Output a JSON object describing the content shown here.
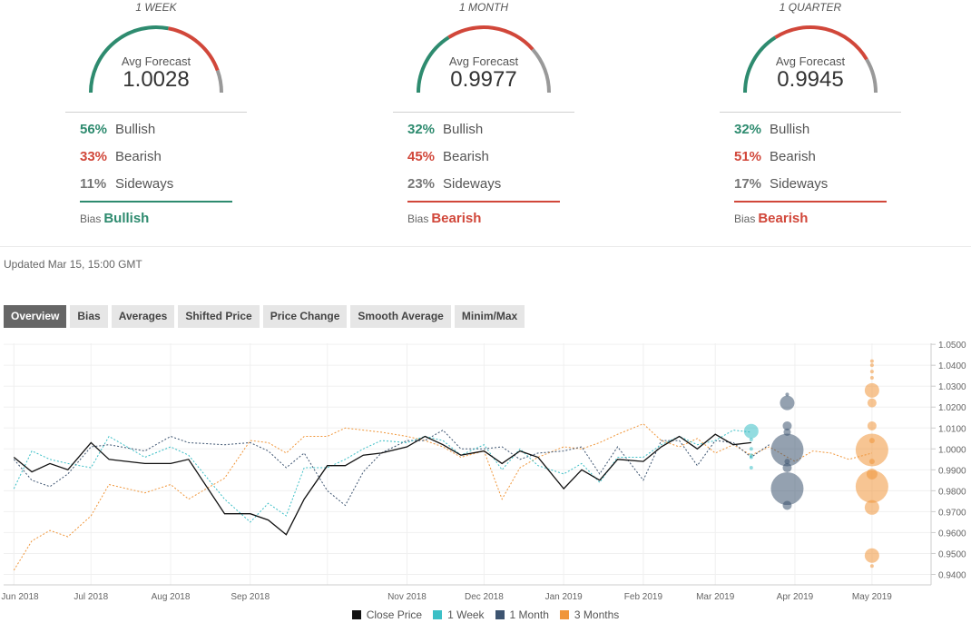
{
  "panels": [
    {
      "title": "1 WEEK",
      "avg_label": "Avg Forecast",
      "avg_value": "1.0028",
      "bullish_pct": "56%",
      "bullish_label": "Bullish",
      "bearish_pct": "33%",
      "bearish_label": "Bearish",
      "sideways_pct": "11%",
      "sideways_label": "Sideways",
      "bias_label": "Bias",
      "bias_value": "Bullish",
      "bias_color": "#2e8b6f",
      "gauge": {
        "bullish": 0.56,
        "bearish": 0.33,
        "sideways": 0.11
      }
    },
    {
      "title": "1 MONTH",
      "avg_label": "Avg Forecast",
      "avg_value": "0.9977",
      "bullish_pct": "32%",
      "bullish_label": "Bullish",
      "bearish_pct": "45%",
      "bearish_label": "Bearish",
      "sideways_pct": "23%",
      "sideways_label": "Sideways",
      "bias_label": "Bias",
      "bias_value": "Bearish",
      "bias_color": "#d1473a",
      "gauge": {
        "bullish": 0.32,
        "bearish": 0.45,
        "sideways": 0.23
      }
    },
    {
      "title": "1 QUARTER",
      "avg_label": "Avg Forecast",
      "avg_value": "0.9945",
      "bullish_pct": "32%",
      "bullish_label": "Bullish",
      "bearish_pct": "51%",
      "bearish_label": "Bearish",
      "sideways_pct": "17%",
      "sideways_label": "Sideways",
      "bias_label": "Bias",
      "bias_value": "Bearish",
      "bias_color": "#d1473a",
      "gauge": {
        "bullish": 0.32,
        "bearish": 0.51,
        "sideways": 0.17
      }
    }
  ],
  "colors": {
    "bullish": "#2e8b6f",
    "bearish": "#d1473a",
    "sideways": "#999999",
    "close": "#111111",
    "week": "#3bbfc6",
    "month": "#3d5470",
    "months3": "#f0963a"
  },
  "updated": "Updated Mar 15, 15:00 GMT",
  "tabs": [
    "Overview",
    "Bias",
    "Averages",
    "Shifted Price",
    "Price Change",
    "Smooth Average",
    "Minim/Max"
  ],
  "active_tab": "Overview",
  "chart_data": {
    "type": "line",
    "x_ticks": [
      "Jun 2018",
      "Jul 2018",
      "Aug 2018",
      "Sep 2018",
      "Nov 2018",
      "Dec 2018",
      "Jan 2019",
      "Feb 2019",
      "Mar 2019",
      "Apr 2019",
      "May 2019"
    ],
    "y_ticks": [
      "1.0500",
      "1.0400",
      "1.0300",
      "1.0200",
      "1.0100",
      "1.0000",
      "0.9900",
      "0.9800",
      "0.9700",
      "0.9600",
      "0.9500",
      "0.9400"
    ],
    "ylim": [
      0.935,
      1.0505
    ],
    "legend_position": "bottom",
    "series": [
      {
        "name": "Close Price",
        "style": "solid",
        "values": [
          [
            "2018-06-01",
            0.996
          ],
          [
            "2018-06-08",
            0.989
          ],
          [
            "2018-06-15",
            0.993
          ],
          [
            "2018-06-22",
            0.99
          ],
          [
            "2018-07-01",
            1.003
          ],
          [
            "2018-07-08",
            0.995
          ],
          [
            "2018-07-22",
            0.993
          ],
          [
            "2018-08-01",
            0.993
          ],
          [
            "2018-08-08",
            0.995
          ],
          [
            "2018-08-22",
            0.969
          ],
          [
            "2018-09-01",
            0.969
          ],
          [
            "2018-09-08",
            0.966
          ],
          [
            "2018-09-15",
            0.959
          ],
          [
            "2018-09-22",
            0.976
          ],
          [
            "2018-10-01",
            0.992
          ],
          [
            "2018-10-08",
            0.992
          ],
          [
            "2018-10-15",
            0.997
          ],
          [
            "2018-10-22",
            0.998
          ],
          [
            "2018-11-01",
            1.001
          ],
          [
            "2018-11-08",
            1.006
          ],
          [
            "2018-11-15",
            1.002
          ],
          [
            "2018-11-22",
            0.997
          ],
          [
            "2018-12-01",
            0.999
          ],
          [
            "2018-12-08",
            0.993
          ],
          [
            "2018-12-15",
            0.999
          ],
          [
            "2018-12-22",
            0.996
          ],
          [
            "2019-01-01",
            0.981
          ],
          [
            "2019-01-08",
            0.99
          ],
          [
            "2019-01-15",
            0.985
          ],
          [
            "2019-01-22",
            0.995
          ],
          [
            "2019-02-01",
            0.994
          ],
          [
            "2019-02-08",
            1.001
          ],
          [
            "2019-02-15",
            1.006
          ],
          [
            "2019-02-22",
            1.0
          ],
          [
            "2019-03-01",
            1.007
          ],
          [
            "2019-03-08",
            1.002
          ],
          [
            "2019-03-15",
            1.003
          ]
        ]
      },
      {
        "name": "1 Week",
        "style": "dashed",
        "values": [
          [
            "2018-06-01",
            0.981
          ],
          [
            "2018-06-08",
            0.999
          ],
          [
            "2018-06-15",
            0.995
          ],
          [
            "2018-06-22",
            0.993
          ],
          [
            "2018-07-01",
            0.991
          ],
          [
            "2018-07-08",
            1.006
          ],
          [
            "2018-07-22",
            0.996
          ],
          [
            "2018-08-01",
            1.001
          ],
          [
            "2018-08-08",
            0.997
          ],
          [
            "2018-08-22",
            0.976
          ],
          [
            "2018-09-01",
            0.965
          ],
          [
            "2018-09-08",
            0.974
          ],
          [
            "2018-09-15",
            0.968
          ],
          [
            "2018-09-22",
            0.991
          ],
          [
            "2018-10-01",
            0.991
          ],
          [
            "2018-10-08",
            0.995
          ],
          [
            "2018-10-15",
            1.0
          ],
          [
            "2018-10-22",
            1.004
          ],
          [
            "2018-11-01",
            1.003
          ],
          [
            "2018-11-08",
            1.006
          ],
          [
            "2018-11-15",
            1.004
          ],
          [
            "2018-11-22",
            0.997
          ],
          [
            "2018-12-01",
            1.002
          ],
          [
            "2018-12-08",
            0.99
          ],
          [
            "2018-12-15",
            1.0
          ],
          [
            "2018-12-22",
            0.992
          ],
          [
            "2019-01-01",
            0.988
          ],
          [
            "2019-01-08",
            0.993
          ],
          [
            "2019-01-15",
            0.984
          ],
          [
            "2019-01-22",
            0.996
          ],
          [
            "2019-02-01",
            0.996
          ],
          [
            "2019-02-08",
            1.002
          ],
          [
            "2019-02-15",
            1.006
          ],
          [
            "2019-02-22",
            1.002
          ],
          [
            "2019-03-01",
            1.004
          ],
          [
            "2019-03-08",
            1.009
          ],
          [
            "2019-03-15",
            1.008
          ]
        ]
      },
      {
        "name": "1 Month",
        "style": "dashed",
        "values": [
          [
            "2018-06-01",
            0.995
          ],
          [
            "2018-06-08",
            0.985
          ],
          [
            "2018-06-15",
            0.982
          ],
          [
            "2018-06-22",
            0.988
          ],
          [
            "2018-07-01",
            1.001
          ],
          [
            "2018-07-08",
            1.002
          ],
          [
            "2018-07-22",
            0.999
          ],
          [
            "2018-08-01",
            1.006
          ],
          [
            "2018-08-08",
            1.003
          ],
          [
            "2018-08-22",
            1.002
          ],
          [
            "2018-09-01",
            1.003
          ],
          [
            "2018-09-08",
            0.999
          ],
          [
            "2018-09-15",
            0.991
          ],
          [
            "2018-09-22",
            0.998
          ],
          [
            "2018-10-01",
            0.98
          ],
          [
            "2018-10-08",
            0.973
          ],
          [
            "2018-10-15",
            0.989
          ],
          [
            "2018-10-22",
            0.998
          ],
          [
            "2018-11-01",
            1.004
          ],
          [
            "2018-11-08",
            1.004
          ],
          [
            "2018-11-15",
            1.009
          ],
          [
            "2018-11-22",
            1.0
          ],
          [
            "2018-12-01",
            1.0
          ],
          [
            "2018-12-08",
            1.001
          ],
          [
            "2018-12-15",
            0.995
          ],
          [
            "2018-12-22",
            0.998
          ],
          [
            "2019-01-01",
            0.999
          ],
          [
            "2019-01-08",
            1.001
          ],
          [
            "2019-01-15",
            0.988
          ],
          [
            "2019-01-22",
            1.001
          ],
          [
            "2019-02-01",
            0.985
          ],
          [
            "2019-02-08",
            1.004
          ],
          [
            "2019-02-15",
            1.004
          ],
          [
            "2019-02-22",
            0.992
          ],
          [
            "2019-03-01",
            1.004
          ],
          [
            "2019-03-08",
            1.003
          ],
          [
            "2019-03-15",
            0.996
          ],
          [
            "2019-03-22",
            1.002
          ]
        ]
      },
      {
        "name": "3 Months",
        "style": "dashed",
        "values": [
          [
            "2018-06-01",
            0.942
          ],
          [
            "2018-06-08",
            0.956
          ],
          [
            "2018-06-15",
            0.961
          ],
          [
            "2018-06-22",
            0.958
          ],
          [
            "2018-07-01",
            0.968
          ],
          [
            "2018-07-08",
            0.983
          ],
          [
            "2018-07-22",
            0.979
          ],
          [
            "2018-08-01",
            0.983
          ],
          [
            "2018-08-08",
            0.976
          ],
          [
            "2018-08-22",
            0.986
          ],
          [
            "2018-09-01",
            1.004
          ],
          [
            "2018-09-08",
            1.003
          ],
          [
            "2018-09-15",
            0.998
          ],
          [
            "2018-09-22",
            1.006
          ],
          [
            "2018-10-01",
            1.006
          ],
          [
            "2018-10-08",
            1.01
          ],
          [
            "2018-10-15",
            1.009
          ],
          [
            "2018-10-22",
            1.008
          ],
          [
            "2018-11-01",
            1.006
          ],
          [
            "2018-11-08",
            1.004
          ],
          [
            "2018-11-15",
            1.001
          ],
          [
            "2018-11-22",
            0.996
          ],
          [
            "2018-12-01",
            0.999
          ],
          [
            "2018-12-08",
            0.976
          ],
          [
            "2018-12-15",
            0.991
          ],
          [
            "2018-12-22",
            0.996
          ],
          [
            "2019-01-01",
            1.001
          ],
          [
            "2019-01-08",
            1.0
          ],
          [
            "2019-01-15",
            1.003
          ],
          [
            "2019-01-22",
            1.007
          ],
          [
            "2019-02-01",
            1.012
          ],
          [
            "2019-02-08",
            1.004
          ],
          [
            "2019-02-15",
            1.001
          ],
          [
            "2019-02-22",
            1.005
          ],
          [
            "2019-03-01",
            0.998
          ],
          [
            "2019-03-08",
            1.002
          ],
          [
            "2019-03-15",
            0.997
          ],
          [
            "2019-03-22",
            1.001
          ],
          [
            "2019-04-01",
            0.994
          ],
          [
            "2019-04-08",
            0.999
          ],
          [
            "2019-04-15",
            0.998
          ],
          [
            "2019-04-22",
            0.995
          ],
          [
            "2019-05-01",
            0.998
          ]
        ]
      }
    ],
    "forecast_bubbles": [
      {
        "series": "1 Week",
        "date": "2019-03-15",
        "points": [
          [
            1.0085,
            8
          ],
          [
            1.0045,
            2
          ],
          [
            1.0,
            2
          ],
          [
            0.997,
            2
          ],
          [
            0.996,
            2
          ],
          [
            0.991,
            2
          ]
        ]
      },
      {
        "series": "1 Month",
        "date": "2019-03-29",
        "points": [
          [
            1.026,
            2
          ],
          [
            1.022,
            8
          ],
          [
            1.011,
            5
          ],
          [
            1.008,
            4
          ],
          [
            0.9995,
            18
          ],
          [
            0.994,
            3
          ],
          [
            0.991,
            5
          ],
          [
            0.981,
            18
          ],
          [
            0.973,
            5
          ]
        ]
      },
      {
        "series": "3 Months",
        "date": "2019-05-01",
        "points": [
          [
            1.042,
            2
          ],
          [
            1.04,
            2
          ],
          [
            1.037,
            2
          ],
          [
            1.034,
            2
          ],
          [
            1.028,
            8
          ],
          [
            1.022,
            5
          ],
          [
            1.011,
            5
          ],
          [
            1.004,
            3
          ],
          [
            0.9995,
            18
          ],
          [
            0.994,
            3
          ],
          [
            0.988,
            6
          ],
          [
            0.982,
            18
          ],
          [
            0.972,
            8
          ],
          [
            0.949,
            8
          ],
          [
            0.944,
            2
          ]
        ]
      }
    ]
  }
}
